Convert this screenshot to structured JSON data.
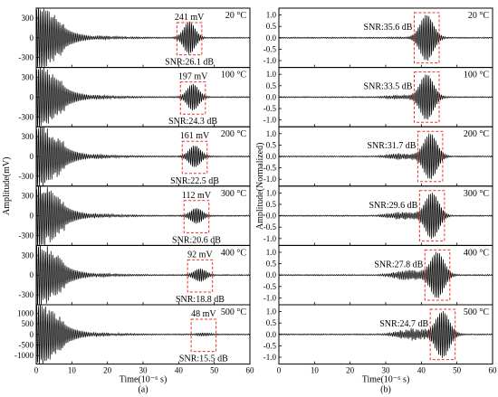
{
  "chart_data": [
    {
      "type": "line",
      "panel_label": "(a)",
      "xlabel": "Time(10⁻⁶ s)",
      "ylabel": "Amplitude(mV)",
      "xlim": [
        0,
        60
      ],
      "x_ticks": [
        "0",
        "10",
        "20",
        "30",
        "40",
        "50",
        "60"
      ],
      "series": [
        {
          "temperature": "20 °C",
          "ylim": [
            -450,
            450
          ],
          "y_ticks": [
            "300",
            "0",
            "-300"
          ],
          "peak_label": "241 mV",
          "peak_value_mV": 241,
          "snr": "SNR:26.1 dB",
          "wave_center_us": 43.0
        },
        {
          "temperature": "100 °C",
          "ylim": [
            -450,
            450
          ],
          "y_ticks": [
            "300",
            "0",
            "-300"
          ],
          "peak_label": "197 mV",
          "peak_value_mV": 197,
          "snr": "SNR:24.3 dB",
          "wave_center_us": 44.0
        },
        {
          "temperature": "200 °C",
          "ylim": [
            -450,
            450
          ],
          "y_ticks": [
            "300",
            "0",
            "-300"
          ],
          "peak_label": "161 mV",
          "peak_value_mV": 161,
          "snr": "SNR:22.5 dB",
          "wave_center_us": 44.5
        },
        {
          "temperature": "300 °C",
          "ylim": [
            -450,
            450
          ],
          "y_ticks": [
            "300",
            "0",
            "-300"
          ],
          "peak_label": "112 mV",
          "peak_value_mV": 112,
          "snr": "SNR:20.6 dB",
          "wave_center_us": 45.0
        },
        {
          "temperature": "400 °C",
          "ylim": [
            -450,
            450
          ],
          "y_ticks": [
            "300",
            "0",
            "-300"
          ],
          "peak_label": "92 mV",
          "peak_value_mV": 92,
          "snr": "SNR:18.8 dB",
          "wave_center_us": 46.0
        },
        {
          "temperature": "500 °C",
          "ylim": [
            -1400,
            1400
          ],
          "y_ticks": [
            "1000",
            "500",
            "0",
            "-500",
            "-1000"
          ],
          "peak_label": "48 mV",
          "peak_value_mV": 48,
          "snr": "SNR:15.5 dB",
          "wave_center_us": 47.0
        }
      ]
    },
    {
      "type": "line",
      "panel_label": "(b)",
      "xlabel": "Time(10⁻⁶ s)",
      "ylabel": "Amplitude(Normalized)",
      "xlim": [
        0,
        60
      ],
      "x_ticks": [
        "0",
        "10",
        "20",
        "30",
        "40",
        "50",
        "60"
      ],
      "y_ticks": [
        "1.0",
        "0.5",
        "0.0",
        "-0.5",
        "-1.0"
      ],
      "ylim": [
        -1.3,
        1.3
      ],
      "series": [
        {
          "temperature": "20 °C",
          "snr": "SNR:35.6 dB",
          "wave_center_us": 41.5
        },
        {
          "temperature": "100 °C",
          "snr": "SNR:33.5 dB",
          "wave_center_us": 41.5
        },
        {
          "temperature": "200 °C",
          "snr": "SNR:31.7 dB",
          "wave_center_us": 42.5
        },
        {
          "temperature": "300 °C",
          "snr": "SNR:29.6 dB",
          "wave_center_us": 43.0
        },
        {
          "temperature": "400 °C",
          "snr": "SNR:27.8 dB",
          "wave_center_us": 44.5
        },
        {
          "temperature": "500 °C",
          "snr": "SNR:24.7 dB",
          "wave_center_us": 46.0
        }
      ]
    }
  ]
}
